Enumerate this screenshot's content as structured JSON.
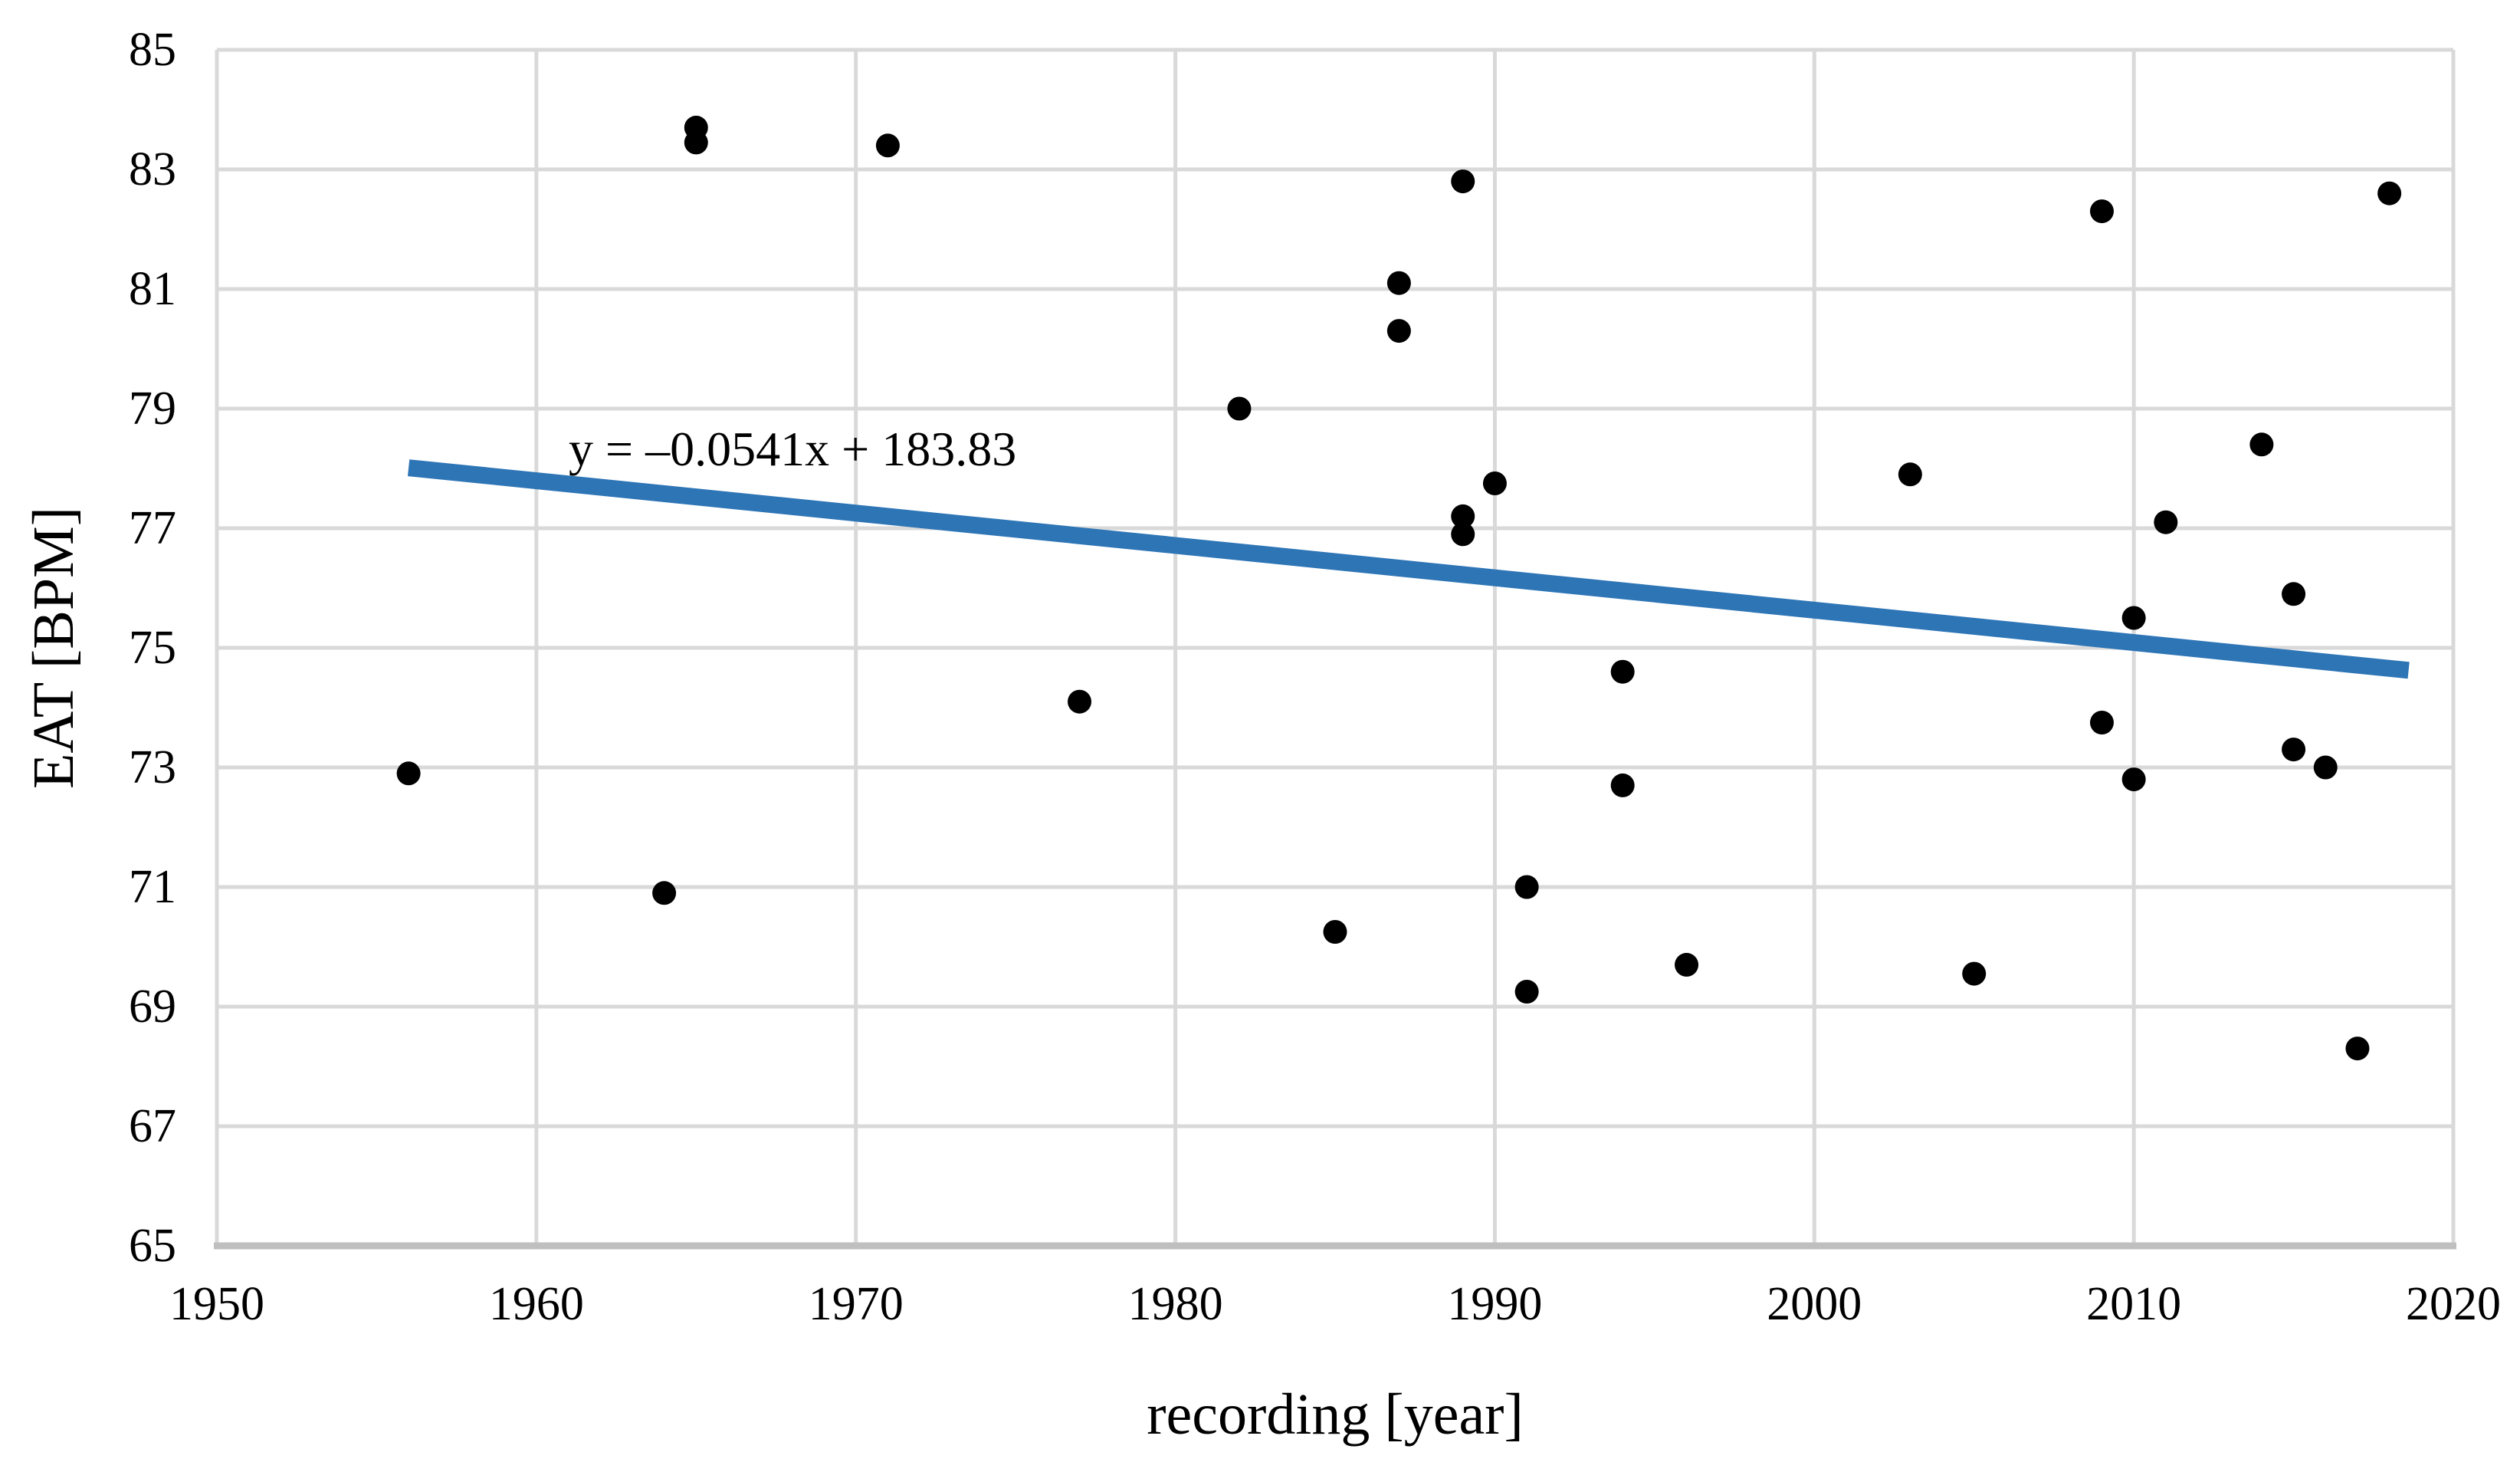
{
  "chart_data": {
    "type": "scatter",
    "title": "",
    "xlabel": "recording [year]",
    "ylabel": "EAT [BPM]",
    "xlim": [
      1950,
      2020
    ],
    "ylim": [
      65,
      85
    ],
    "x_ticks": [
      1950,
      1960,
      1970,
      1980,
      1990,
      2000,
      2010,
      2020
    ],
    "y_ticks": [
      65,
      67,
      69,
      71,
      73,
      75,
      77,
      79,
      81,
      83,
      85
    ],
    "grid": true,
    "legend": "none",
    "points": [
      [
        1956,
        72.9
      ],
      [
        1964,
        70.9
      ],
      [
        1965,
        83.7
      ],
      [
        1965,
        83.45
      ],
      [
        1971,
        83.4
      ],
      [
        1977,
        74.1
      ],
      [
        1982,
        79.0
      ],
      [
        1985,
        70.25
      ],
      [
        1987,
        81.1
      ],
      [
        1987,
        80.3
      ],
      [
        1989,
        82.8
      ],
      [
        1989,
        77.2
      ],
      [
        1989,
        76.9
      ],
      [
        1990,
        77.75
      ],
      [
        1991,
        71.0
      ],
      [
        1991,
        69.25
      ],
      [
        1994,
        74.6
      ],
      [
        1994,
        72.7
      ],
      [
        1996,
        69.7
      ],
      [
        2003,
        77.9
      ],
      [
        2005,
        69.55
      ],
      [
        2009,
        82.3
      ],
      [
        2009,
        73.75
      ],
      [
        2010,
        75.5
      ],
      [
        2010,
        72.8
      ],
      [
        2011,
        77.1
      ],
      [
        2014,
        78.4
      ],
      [
        2015,
        75.9
      ],
      [
        2015,
        73.3
      ],
      [
        2016,
        73.0
      ],
      [
        2017,
        68.3
      ],
      [
        2018,
        82.6
      ]
    ],
    "trendline": {
      "equation": "y = –0.0541x + 183.83",
      "slope": -0.0541,
      "intercept": 183.83,
      "x_start": 1956,
      "x_end": 2018.6,
      "color": "#2E75B6"
    },
    "marker_color": "#000000",
    "colors": {
      "gridline": "#D9D9D9",
      "axis_line": "#BFBFBF",
      "text": "#000000",
      "background": "#FFFFFF",
      "trendline": "#2E75B6"
    }
  }
}
